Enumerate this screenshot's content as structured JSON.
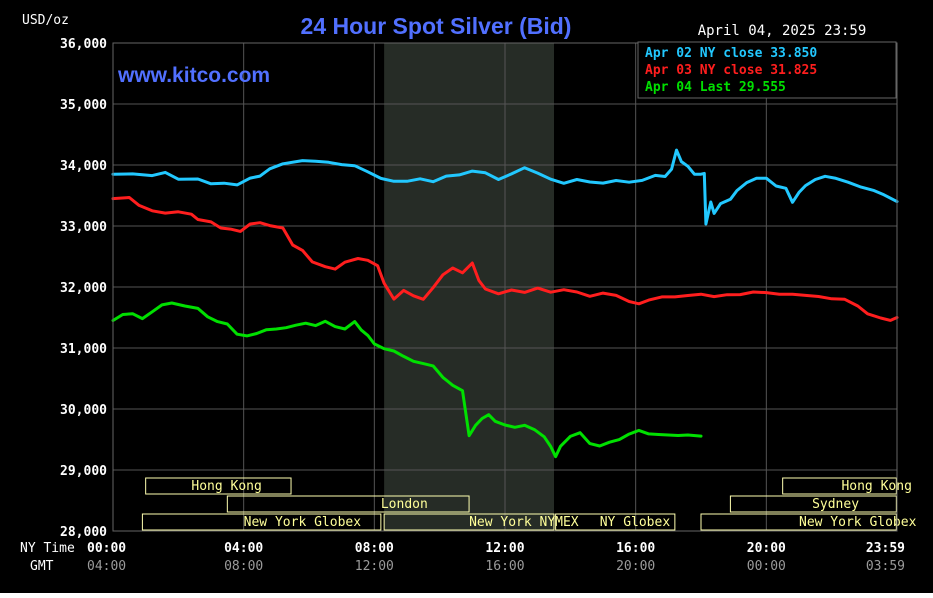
{
  "header": {
    "units": "USD/oz",
    "title": "24 Hour Spot Silver (Bid)",
    "timestamp": "April 04, 2025 23:59",
    "website": "www.kitco.com"
  },
  "colors": {
    "background": "#000000",
    "title": "#5170ff",
    "axis_text": "#ffffff",
    "gmt_text": "#9a9a9a",
    "grid": "#555555",
    "session_shade": "#262c26",
    "session_box": "#ffffb0",
    "session_text": "#ffff99"
  },
  "legend": [
    {
      "label": "Apr 02 NY close 33.850",
      "color": "#22c8ff"
    },
    {
      "label": "Apr 03 NY close 31.825",
      "color": "#ff1e1e"
    },
    {
      "label": "Apr 04 Last 29.555",
      "color": "#00e000"
    }
  ],
  "x_axis": {
    "ny_label": "NY Time",
    "gmt_label": "GMT",
    "ny_ticks": [
      "00:00",
      "04:00",
      "08:00",
      "12:00",
      "16:00",
      "20:00",
      "23:59"
    ],
    "gmt_ticks": [
      "04:00",
      "08:00",
      "12:00",
      "16:00",
      "20:00",
      "00:00",
      "03:59"
    ]
  },
  "sessions": [
    {
      "label": "Hong Kong",
      "row": 1,
      "start": 1,
      "end": 5.45,
      "text_at": 2.4
    },
    {
      "label": "Hong Kong",
      "row": 1,
      "start": 20.5,
      "end": 23.98,
      "text_at": 22.3
    },
    {
      "label": "London",
      "row": 2,
      "start": 3.5,
      "end": 10.9,
      "text_at": 8.2
    },
    {
      "label": "Sydney",
      "row": 2,
      "start": 18.9,
      "end": 23.98,
      "text_at": 21.4
    },
    {
      "label": "New York Globex",
      "row": 3,
      "start": 0.9,
      "end": 8.2,
      "text_at": 4.0
    },
    {
      "label": "New York NYMEX",
      "row": 3,
      "start": 8.3,
      "end": 13.5,
      "text_at": 10.9
    },
    {
      "label": "NY Globex",
      "row": 3,
      "start": 13.55,
      "end": 17.2,
      "text_at": 14.9
    },
    {
      "label": "New York Globex",
      "row": 3,
      "start": 18.0,
      "end": 23.98,
      "text_at": 21.0
    }
  ],
  "chart_data": {
    "type": "line",
    "title": "24 Hour Spot Silver (Bid)",
    "ylabel": "USD/oz",
    "xlabel": "NY Time",
    "x_units": "hours since 00:00 NY",
    "xlim": [
      0,
      24
    ],
    "ylim": [
      28000,
      36000
    ],
    "y_ticks": [
      28000,
      29000,
      30000,
      31000,
      32000,
      33000,
      34000,
      35000,
      36000
    ],
    "y_tick_labels": [
      "28,000",
      "29,000",
      "30,000",
      "31,000",
      "32,000",
      "33,000",
      "34,000",
      "35,000",
      "36,000"
    ],
    "grid": true,
    "legend_position": "top-right",
    "highlight_band": [
      8.3,
      13.5
    ],
    "series": [
      {
        "name": "Apr 02 NY close 33.850",
        "color": "#22c8ff",
        "points": [
          [
            0,
            33850
          ],
          [
            0.6,
            33860
          ],
          [
            1.2,
            33820
          ],
          [
            1.6,
            33860
          ],
          [
            2.0,
            33780
          ],
          [
            2.6,
            33770
          ],
          [
            3.0,
            33680
          ],
          [
            3.4,
            33720
          ],
          [
            3.8,
            33680
          ],
          [
            4.2,
            33780
          ],
          [
            4.5,
            33800
          ],
          [
            4.8,
            33950
          ],
          [
            5.2,
            34020
          ],
          [
            5.8,
            34060
          ],
          [
            6.2,
            34080
          ],
          [
            6.6,
            34050
          ],
          [
            7.0,
            34000
          ],
          [
            7.4,
            33970
          ],
          [
            7.8,
            33900
          ],
          [
            8.2,
            33780
          ],
          [
            8.6,
            33720
          ],
          [
            9.0,
            33750
          ],
          [
            9.4,
            33780
          ],
          [
            9.8,
            33720
          ],
          [
            10.2,
            33800
          ],
          [
            10.6,
            33850
          ],
          [
            11.0,
            33900
          ],
          [
            11.4,
            33860
          ],
          [
            11.8,
            33780
          ],
          [
            12.2,
            33860
          ],
          [
            12.6,
            33950
          ],
          [
            13.0,
            33850
          ],
          [
            13.4,
            33780
          ],
          [
            13.8,
            33700
          ],
          [
            14.2,
            33750
          ],
          [
            14.6,
            33740
          ],
          [
            15.0,
            33710
          ],
          [
            15.4,
            33740
          ],
          [
            15.8,
            33700
          ],
          [
            16.2,
            33760
          ],
          [
            16.6,
            33830
          ],
          [
            16.9,
            33800
          ],
          [
            17.1,
            33950
          ],
          [
            17.25,
            34250
          ],
          [
            17.4,
            34050
          ],
          [
            17.6,
            33960
          ],
          [
            17.8,
            33860
          ],
          [
            18.0,
            33850
          ],
          [
            18.1,
            33850
          ],
          [
            18.15,
            33050
          ],
          [
            18.3,
            33400
          ],
          [
            18.4,
            33200
          ],
          [
            18.6,
            33350
          ],
          [
            18.9,
            33450
          ],
          [
            19.1,
            33580
          ],
          [
            19.4,
            33700
          ],
          [
            19.7,
            33800
          ],
          [
            20.0,
            33790
          ],
          [
            20.3,
            33650
          ],
          [
            20.6,
            33600
          ],
          [
            20.8,
            33400
          ],
          [
            21.0,
            33550
          ],
          [
            21.2,
            33650
          ],
          [
            21.5,
            33780
          ],
          [
            21.8,
            33820
          ],
          [
            22.1,
            33780
          ],
          [
            22.5,
            33700
          ],
          [
            22.9,
            33650
          ],
          [
            23.3,
            33580
          ],
          [
            23.6,
            33500
          ],
          [
            24.0,
            33400
          ]
        ]
      },
      {
        "name": "Apr 03 NY close 31.825",
        "color": "#ff1e1e",
        "points": [
          [
            0,
            33450
          ],
          [
            0.5,
            33450
          ],
          [
            0.8,
            33350
          ],
          [
            1.2,
            33250
          ],
          [
            1.6,
            33200
          ],
          [
            2.0,
            33250
          ],
          [
            2.4,
            33200
          ],
          [
            2.6,
            33100
          ],
          [
            3.0,
            33050
          ],
          [
            3.3,
            32980
          ],
          [
            3.6,
            32950
          ],
          [
            3.9,
            32900
          ],
          [
            4.2,
            33050
          ],
          [
            4.5,
            33060
          ],
          [
            4.8,
            33000
          ],
          [
            5.2,
            32950
          ],
          [
            5.5,
            32700
          ],
          [
            5.8,
            32600
          ],
          [
            6.1,
            32400
          ],
          [
            6.5,
            32350
          ],
          [
            6.8,
            32300
          ],
          [
            7.1,
            32400
          ],
          [
            7.5,
            32450
          ],
          [
            7.8,
            32450
          ],
          [
            8.1,
            32350
          ],
          [
            8.3,
            32050
          ],
          [
            8.6,
            31820
          ],
          [
            8.9,
            31950
          ],
          [
            9.2,
            31850
          ],
          [
            9.5,
            31780
          ],
          [
            9.8,
            32000
          ],
          [
            10.1,
            32200
          ],
          [
            10.4,
            32300
          ],
          [
            10.7,
            32250
          ],
          [
            11.0,
            32400
          ],
          [
            11.2,
            32100
          ],
          [
            11.4,
            31950
          ],
          [
            11.8,
            31900
          ],
          [
            12.2,
            31950
          ],
          [
            12.6,
            31900
          ],
          [
            13.0,
            32000
          ],
          [
            13.4,
            31920
          ],
          [
            13.8,
            31950
          ],
          [
            14.2,
            31900
          ],
          [
            14.6,
            31860
          ],
          [
            15.0,
            31900
          ],
          [
            15.4,
            31850
          ],
          [
            15.8,
            31780
          ],
          [
            16.1,
            31730
          ],
          [
            16.4,
            31780
          ],
          [
            16.8,
            31820
          ],
          [
            17.2,
            31850
          ],
          [
            17.6,
            31860
          ],
          [
            18.0,
            31870
          ],
          [
            18.4,
            31860
          ],
          [
            18.8,
            31880
          ],
          [
            19.2,
            31870
          ],
          [
            19.6,
            31900
          ],
          [
            20.0,
            31920
          ],
          [
            20.4,
            31880
          ],
          [
            20.8,
            31870
          ],
          [
            21.2,
            31880
          ],
          [
            21.6,
            31850
          ],
          [
            22.0,
            31800
          ],
          [
            22.4,
            31780
          ],
          [
            22.8,
            31700
          ],
          [
            23.1,
            31560
          ],
          [
            23.5,
            31480
          ],
          [
            23.8,
            31470
          ],
          [
            24.0,
            31500
          ]
        ]
      },
      {
        "name": "Apr 04 Last 29.555",
        "color": "#00e000",
        "points": [
          [
            0,
            31450
          ],
          [
            0.3,
            31550
          ],
          [
            0.6,
            31550
          ],
          [
            0.9,
            31500
          ],
          [
            1.2,
            31600
          ],
          [
            1.5,
            31700
          ],
          [
            1.8,
            31720
          ],
          [
            2.2,
            31700
          ],
          [
            2.6,
            31650
          ],
          [
            2.9,
            31500
          ],
          [
            3.2,
            31450
          ],
          [
            3.5,
            31400
          ],
          [
            3.8,
            31220
          ],
          [
            4.1,
            31180
          ],
          [
            4.4,
            31250
          ],
          [
            4.7,
            31300
          ],
          [
            5.0,
            31300
          ],
          [
            5.3,
            31350
          ],
          [
            5.6,
            31380
          ],
          [
            5.9,
            31400
          ],
          [
            6.2,
            31350
          ],
          [
            6.5,
            31450
          ],
          [
            6.8,
            31350
          ],
          [
            7.1,
            31300
          ],
          [
            7.4,
            31450
          ],
          [
            7.6,
            31300
          ],
          [
            7.8,
            31200
          ],
          [
            8.0,
            31050
          ],
          [
            8.3,
            31000
          ],
          [
            8.6,
            30950
          ],
          [
            8.9,
            30850
          ],
          [
            9.2,
            30800
          ],
          [
            9.5,
            30750
          ],
          [
            9.8,
            30700
          ],
          [
            10.1,
            30500
          ],
          [
            10.4,
            30400
          ],
          [
            10.7,
            30300
          ],
          [
            10.9,
            29550
          ],
          [
            11.1,
            29750
          ],
          [
            11.3,
            29850
          ],
          [
            11.5,
            29900
          ],
          [
            11.7,
            29780
          ],
          [
            12.0,
            29750
          ],
          [
            12.3,
            29700
          ],
          [
            12.6,
            29720
          ],
          [
            12.9,
            29680
          ],
          [
            13.2,
            29550
          ],
          [
            13.4,
            29380
          ],
          [
            13.55,
            29200
          ],
          [
            13.7,
            29400
          ],
          [
            14.0,
            29550
          ],
          [
            14.3,
            29600
          ],
          [
            14.6,
            29450
          ],
          [
            14.9,
            29400
          ],
          [
            15.2,
            29450
          ],
          [
            15.5,
            29480
          ],
          [
            15.8,
            29600
          ],
          [
            16.1,
            29650
          ],
          [
            16.4,
            29580
          ],
          [
            16.7,
            29600
          ],
          [
            17.0,
            29580
          ],
          [
            17.3,
            29560
          ],
          [
            17.6,
            29555
          ],
          [
            18.0,
            29555
          ]
        ]
      }
    ]
  }
}
